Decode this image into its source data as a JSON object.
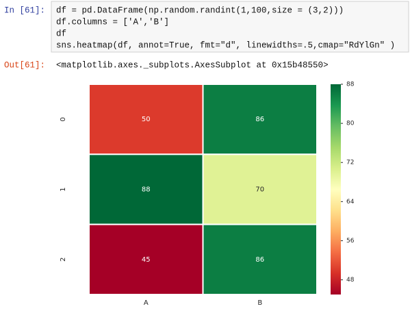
{
  "cell": {
    "prompt_in": "In [61]:",
    "code": [
      "df = pd.DataFrame(np.random.randint(1,100,size = (3,2)))",
      "df.columns = ['A','B']",
      "df",
      "sns.heatmap(df, annot=True, fmt=\"d\", linewidths=.5,cmap=\"RdYlGn\" )"
    ],
    "prompt_out": "Out[61]:",
    "output": "<matplotlib.axes._subplots.AxesSubplot at 0x15b48550>"
  },
  "chart_data": {
    "type": "heatmap",
    "x_categories": [
      "A",
      "B"
    ],
    "y_categories": [
      "0",
      "1",
      "2"
    ],
    "values": [
      [
        50,
        86
      ],
      [
        88,
        70
      ],
      [
        45,
        86
      ]
    ],
    "clim": [
      45,
      88
    ],
    "colorbar_ticks": [
      48,
      56,
      64,
      72,
      80,
      88
    ],
    "colormap": [
      "#a50026",
      "#d73027",
      "#f46d43",
      "#fdae61",
      "#fee08b",
      "#ffffbf",
      "#d9ef8b",
      "#a6d96a",
      "#66bd63",
      "#1a9850",
      "#006837"
    ]
  }
}
